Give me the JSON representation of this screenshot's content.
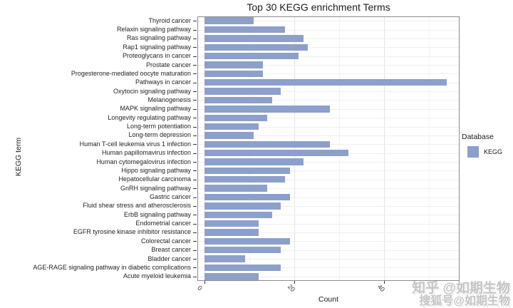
{
  "title": "Top 30 KEGG enrichment Terms",
  "chart_data": {
    "type": "bar",
    "orientation": "horizontal",
    "title": "Top 30 KEGG enrichment Terms",
    "xlabel": "Count",
    "ylabel": "KEGG term",
    "xlim": [
      0,
      56
    ],
    "x_ticks": [
      0,
      20,
      40
    ],
    "x_minor_ticks": [
      10,
      30,
      50
    ],
    "grid": true,
    "bar_color": "#8da0cb",
    "legend": {
      "position": "right",
      "title": "Database",
      "items": [
        {
          "label": "KEGG",
          "color": "#8da0cb"
        }
      ]
    },
    "categories": [
      "Thyroid cancer",
      "Relaxin signaling pathway",
      "Ras signaling pathway",
      "Rap1 signaling pathway",
      "Proteoglycans in cancer",
      "Prostate cancer",
      "Progesterone-mediated oocyte maturation",
      "Pathways in cancer",
      "Oxytocin signaling pathway",
      "Melanogenesis",
      "MAPK signaling pathway",
      "Longevity regulating pathway",
      "Long-term potentiation",
      "Long-term depression",
      "Human T-cell leukemia virus 1 infection",
      "Human papillomavirus infection",
      "Human cytomegalovirus infection",
      "Hippo signaling pathway",
      "Hepatocellular carcinoma",
      "GnRH signaling pathway",
      "Gastric cancer",
      "Fluid shear stress and atherosclerosis",
      "ErbB signaling pathway",
      "Endometrial cancer",
      "EGFR tyrosine kinase inhibitor resistance",
      "Colorectal cancer",
      "Breast cancer",
      "Bladder cancer",
      "AGE-RAGE signaling pathway in diabetic complications",
      "Acute myeloid leukemia"
    ],
    "values": [
      11,
      18,
      22,
      23,
      21,
      13,
      13,
      54,
      17,
      15,
      28,
      14,
      12,
      11,
      28,
      32,
      22,
      19,
      18,
      14,
      19,
      17,
      15,
      12,
      12,
      19,
      17,
      9,
      17,
      12
    ]
  },
  "watermark": {
    "line1": "知乎 @如期生物",
    "line2": "搜狐号@如期生物"
  }
}
